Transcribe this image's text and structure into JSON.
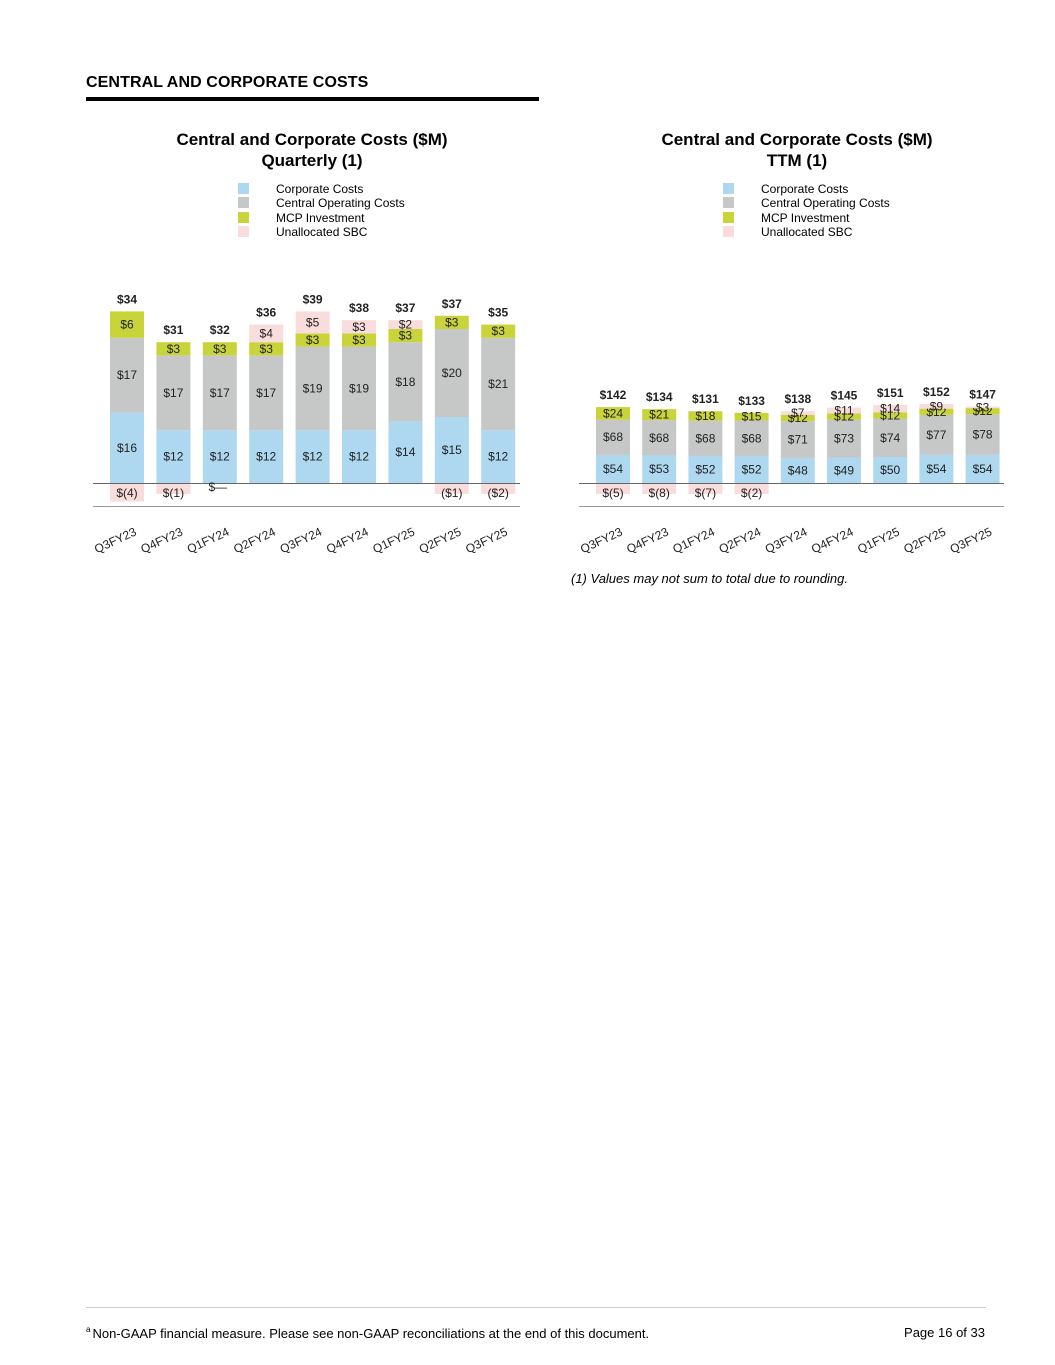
{
  "section_title": "CENTRAL AND CORPORATE COSTS",
  "legend_labels": [
    "Corporate Costs",
    "Central Operating Costs",
    "MCP Investment",
    "Unallocated SBC"
  ],
  "colors": {
    "corporate": "#add8f0",
    "central": "#c6c8c8",
    "mcp": "#c9d43a",
    "sbc": "#f9dcdc",
    "axis": "#666666"
  },
  "chart_data": [
    {
      "type": "bar",
      "stacked": true,
      "title": "Central and Corporate Costs ($M)",
      "subtitle": "Quarterly (1)",
      "categories": [
        "Q3FY23",
        "Q4FY23",
        "Q1FY24",
        "Q2FY24",
        "Q3FY24",
        "Q4FY24",
        "Q1FY25",
        "Q2FY25",
        "Q3FY25"
      ],
      "series": [
        {
          "name": "Corporate Costs",
          "values": [
            16,
            12,
            12,
            12,
            12,
            12,
            14,
            15,
            12
          ],
          "labels": [
            "$16",
            "$12",
            "$12",
            "$12",
            "$12",
            "$12",
            "$14",
            "$15",
            "$12"
          ]
        },
        {
          "name": "Central Operating Costs",
          "values": [
            17,
            17,
            17,
            17,
            19,
            19,
            18,
            20,
            21
          ],
          "labels": [
            "$17",
            "$17",
            "$17",
            "$17",
            "$19",
            "$19",
            "$18",
            "$20",
            "$21"
          ]
        },
        {
          "name": "MCP Investment",
          "values": [
            6,
            3,
            3,
            3,
            3,
            3,
            3,
            3,
            3
          ],
          "labels": [
            "$6",
            "$3",
            "$3",
            "$3",
            "$3",
            "$3",
            "$3",
            "$3",
            "$3"
          ]
        },
        {
          "name": "Unallocated SBC",
          "values": [
            -4,
            -1,
            0,
            4,
            5,
            3,
            2,
            -1,
            -2
          ],
          "labels": [
            "$(4)",
            "$(1)",
            "$—",
            "$4",
            "$5",
            "$3",
            "$2",
            "($1)",
            "($2)"
          ]
        }
      ],
      "totals": [
        34,
        31,
        32,
        36,
        39,
        38,
        37,
        37,
        35
      ],
      "total_labels": [
        "$34",
        "$31",
        "$32",
        "$36",
        "$39",
        "$38",
        "$37",
        "$37",
        "$35"
      ],
      "ylim": [
        -6,
        45
      ]
    },
    {
      "type": "bar",
      "stacked": true,
      "title": "Central and Corporate Costs ($M)",
      "subtitle": "TTM (1)",
      "categories": [
        "Q3FY23",
        "Q4FY23",
        "Q1FY24",
        "Q2FY24",
        "Q3FY24",
        "Q4FY24",
        "Q1FY25",
        "Q2FY25",
        "Q3FY25"
      ],
      "series": [
        {
          "name": "Corporate Costs",
          "values": [
            54,
            53,
            52,
            52,
            48,
            49,
            50,
            54,
            54
          ],
          "labels": [
            "$54",
            "$53",
            "$52",
            "$52",
            "$48",
            "$49",
            "$50",
            "$54",
            "$54"
          ]
        },
        {
          "name": "Central Operating Costs",
          "values": [
            68,
            68,
            68,
            68,
            71,
            73,
            74,
            77,
            78
          ],
          "labels": [
            "$68",
            "$68",
            "$68",
            "$68",
            "$71",
            "$73",
            "$74",
            "$77",
            "$78"
          ]
        },
        {
          "name": "MCP Investment",
          "values": [
            24,
            21,
            18,
            15,
            12,
            12,
            12,
            12,
            12
          ],
          "labels": [
            "$24",
            "$21",
            "$18",
            "$15",
            "$12",
            "$12",
            "$12",
            "$12",
            "$12"
          ]
        },
        {
          "name": "Unallocated SBC",
          "values": [
            -5,
            -8,
            -7,
            -2,
            7,
            11,
            14,
            9,
            3
          ],
          "labels": [
            "$(5)",
            "$(8)",
            "$(7)",
            "$(2)",
            "$7",
            "$11",
            "$14",
            "$9",
            "$3"
          ]
        }
      ],
      "totals": [
        142,
        134,
        131,
        133,
        138,
        145,
        151,
        152,
        147
      ],
      "total_labels": [
        "$142",
        "$134",
        "$131",
        "$133",
        "$138",
        "$145",
        "$151",
        "$152",
        "$147"
      ],
      "ylim": [
        -12,
        168
      ]
    }
  ],
  "footnote": "(1) Values may not sum to total due to rounding.",
  "footer_marker": "a",
  "footer_note": "Non-GAAP financial measure. Please see non-GAAP reconciliations at the end of this document.",
  "page_number": "Page 16 of 33"
}
